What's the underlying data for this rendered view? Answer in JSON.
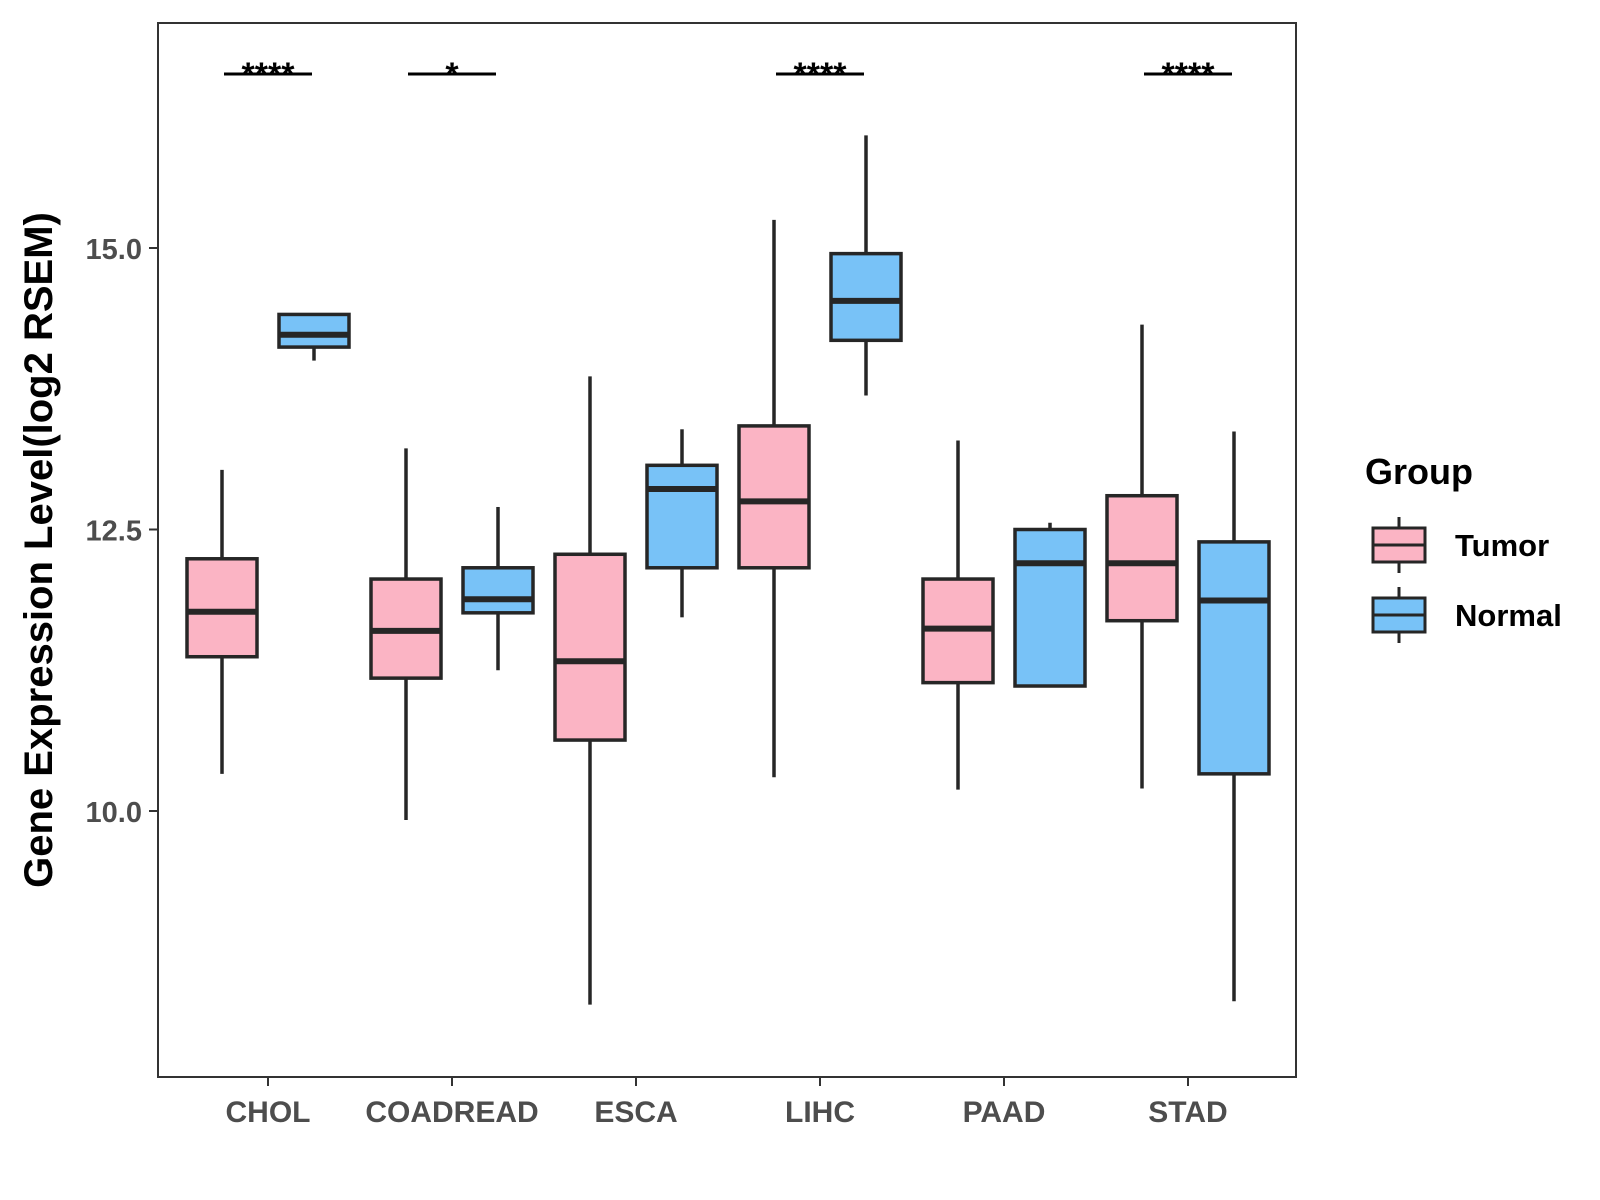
{
  "chart_data": {
    "type": "boxplot",
    "title": "",
    "xlabel": "",
    "ylabel": "Gene Expression Level(log2 RSEM)",
    "ylim": [
      7.7,
      17.1
    ],
    "yticks": [
      10.0,
      12.5,
      15.0
    ],
    "ytick_labels": [
      "10.0",
      "12.5",
      "15.0"
    ],
    "grid": false,
    "categories": [
      "CHOL",
      "COADREAD",
      "ESCA",
      "LIHC",
      "PAAD",
      "STAD"
    ],
    "series": [
      {
        "name": "Tumor",
        "color": "#FBB4C4",
        "boxes": [
          {
            "min": 10.33,
            "q1": 11.37,
            "median": 11.77,
            "q3": 12.24,
            "max": 13.03
          },
          {
            "min": 9.92,
            "q1": 11.18,
            "median": 11.6,
            "q3": 12.06,
            "max": 13.22
          },
          {
            "min": 8.28,
            "q1": 10.63,
            "median": 11.33,
            "q3": 12.28,
            "max": 13.86
          },
          {
            "min": 10.3,
            "q1": 12.16,
            "median": 12.75,
            "q3": 13.42,
            "max": 15.25
          },
          {
            "min": 10.19,
            "q1": 11.14,
            "median": 11.62,
            "q3": 12.06,
            "max": 13.29
          },
          {
            "min": 10.2,
            "q1": 11.69,
            "median": 12.2,
            "q3": 12.8,
            "max": 14.32
          }
        ]
      },
      {
        "name": "Normal",
        "color": "#78C2F7",
        "boxes": [
          {
            "min": 14.0,
            "q1": 14.12,
            "median": 14.23,
            "q3": 14.41,
            "max": 14.41
          },
          {
            "min": 11.25,
            "q1": 11.76,
            "median": 11.88,
            "q3": 12.16,
            "max": 12.7
          },
          {
            "min": 11.72,
            "q1": 12.16,
            "median": 12.86,
            "q3": 13.07,
            "max": 13.39
          },
          {
            "min": 13.69,
            "q1": 14.18,
            "median": 14.53,
            "q3": 14.95,
            "max": 16.0
          },
          {
            "min": 11.11,
            "q1": 11.11,
            "median": 12.2,
            "q3": 12.5,
            "max": 12.56
          },
          {
            "min": 8.31,
            "q1": 10.33,
            "median": 11.87,
            "q3": 12.39,
            "max": 13.37
          }
        ]
      }
    ],
    "significance": [
      {
        "category": "CHOL",
        "label": "****"
      },
      {
        "category": "COADREAD",
        "label": "*"
      },
      {
        "category": "ESCA",
        "label": ""
      },
      {
        "category": "LIHC",
        "label": "****"
      },
      {
        "category": "PAAD",
        "label": ""
      },
      {
        "category": "STAD",
        "label": "****"
      }
    ],
    "legend": {
      "title": "Group",
      "position": "right",
      "entries": [
        {
          "name": "Tumor",
          "color": "#FBB4C4"
        },
        {
          "name": "Normal",
          "color": "#78C2F7"
        }
      ]
    }
  }
}
